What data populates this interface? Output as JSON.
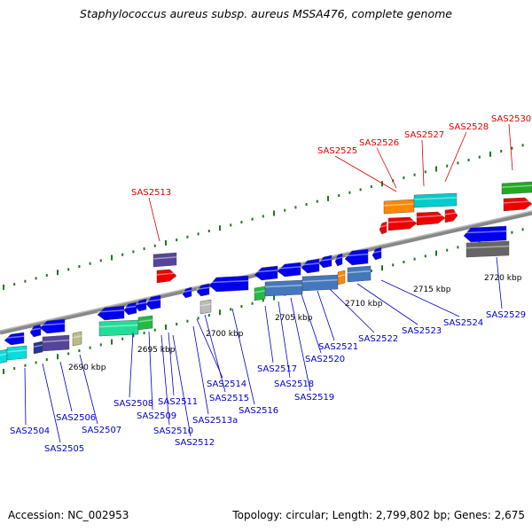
{
  "title": "Staphylococcus aureus subsp. aureus MSSA476, complete genome",
  "footer": {
    "accession": "Accession: NC_002953",
    "topology": "Topology: circular; Length: 2,799,802 bp; Genes: 2,675"
  },
  "colors": {
    "label_blue": "#0000cc",
    "label_red": "#dd0000",
    "backbone": "#888888",
    "dots": "#1a7a1a"
  },
  "scale_labels": [
    "2690 kbp",
    "2695 kbp",
    "2700 kbp",
    "2705 kbp",
    "2710 kbp",
    "2715 kbp",
    "2720 kbp"
  ],
  "gene_labels": {
    "red": [
      "SAS2513",
      "SAS2525",
      "SAS2526",
      "SAS2527",
      "SAS2528",
      "SAS2530"
    ],
    "blue": [
      "SAS2504",
      "SAS2505",
      "SAS2506",
      "SAS2507",
      "SAS2508",
      "SAS2509",
      "SAS2510",
      "SAS2511",
      "SAS2512",
      "SAS2513a",
      "SAS2514",
      "SAS2515",
      "SAS2516",
      "SAS2517",
      "SAS2518",
      "SAS2519",
      "SAS2520",
      "SAS2521",
      "SAS2522",
      "SAS2523",
      "SAS2524",
      "SAS2529"
    ]
  }
}
